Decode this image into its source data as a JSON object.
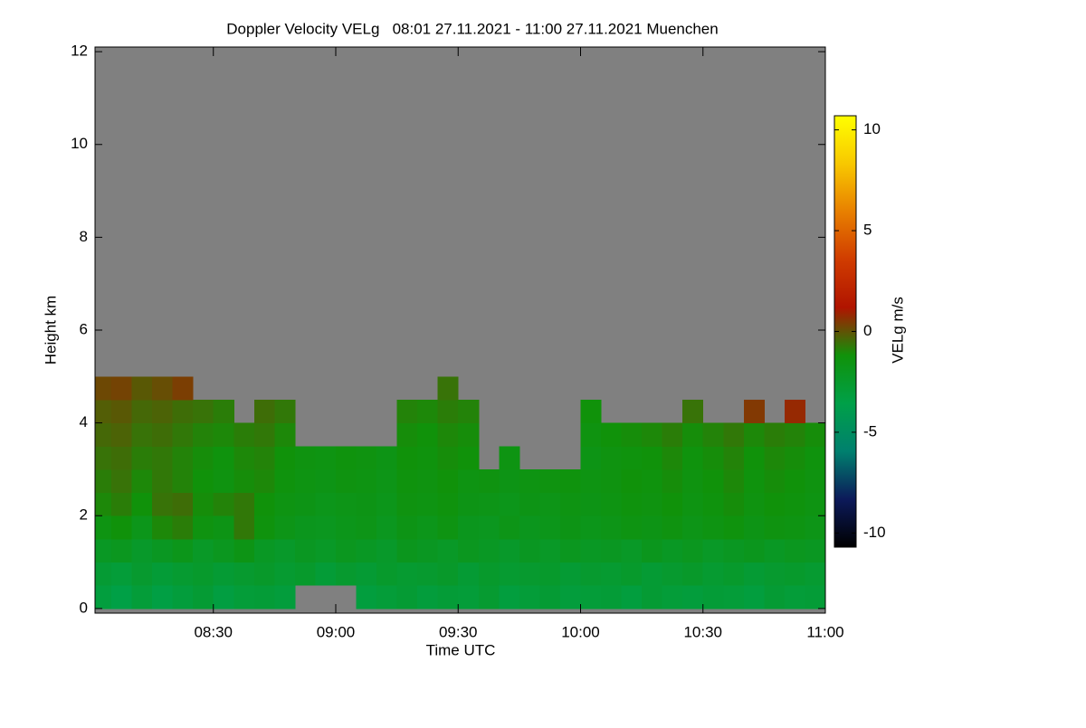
{
  "chart_data": {
    "type": "heatmap",
    "title": "Doppler Velocity VELg   08:01 27.11.2021 - 11:00 27.11.2021 Muenchen",
    "xlabel": "Time UTC",
    "ylabel": "Height km",
    "colorbar_label": "VELg m/s",
    "background": "#808080",
    "colorscale": [
      "#000000",
      "#0c1a5a",
      "#00806e",
      "#00a048",
      "#10920a",
      "#b01400",
      "#d03c00",
      "#e88000",
      "#f8c800",
      "#ffff00"
    ],
    "xlim": [
      481,
      660
    ],
    "ylim": [
      -0.1,
      12.1
    ],
    "zlim": [
      -10.7,
      10.7
    ],
    "xticks": [
      {
        "value": 510,
        "label": "08:30"
      },
      {
        "value": 540,
        "label": "09:00"
      },
      {
        "value": 570,
        "label": "09:30"
      },
      {
        "value": 600,
        "label": "10:00"
      },
      {
        "value": 630,
        "label": "10:30"
      },
      {
        "value": 660,
        "label": "11:00"
      }
    ],
    "yticks": [
      0,
      2,
      4,
      6,
      8,
      10,
      12
    ],
    "zticks": [
      -10,
      -5,
      0,
      5,
      10
    ],
    "x_edges": [
      481,
      485,
      490,
      495,
      500,
      505,
      510,
      515,
      520,
      525,
      530,
      535,
      540,
      545,
      550,
      555,
      560,
      565,
      570,
      575,
      580,
      585,
      590,
      595,
      600,
      605,
      610,
      615,
      620,
      625,
      630,
      635,
      640,
      645,
      650,
      655,
      660
    ],
    "y_edges": [
      0,
      0.5,
      1,
      1.5,
      2,
      2.5,
      3,
      3.5,
      4,
      4.5,
      5
    ],
    "z": [
      [
        -3.2,
        -3.5,
        -3,
        -3.4,
        -3.1,
        -2.8,
        -3.3,
        -3,
        -2.9,
        -3.1,
        null,
        null,
        null,
        -3.2,
        -3,
        -2.8,
        -3.1,
        -2.9,
        -3,
        -2.7,
        -3.2,
        -3,
        -2.8,
        -3.1,
        -3,
        -2.9,
        -3.2,
        -2.8,
        -3,
        -3.1,
        -2.9,
        -3,
        -3.2,
        -2.8,
        -3,
        -2.9
      ],
      [
        -2.8,
        -3,
        -2.6,
        -2.9,
        -2.7,
        -2.5,
        -2.8,
        -2.6,
        -2.4,
        -2.7,
        -2.5,
        -2.9,
        -2.6,
        -2.8,
        -2.5,
        -2.7,
        -2.6,
        -2.4,
        -2.8,
        -2.5,
        -2.7,
        -2.6,
        -2.5,
        -2.8,
        -2.6,
        -2.7,
        -2.5,
        -2.8,
        -2.6,
        -2.4,
        -2.7,
        -2.5,
        -2.8,
        -2.6,
        -2.5,
        -2.7
      ],
      [
        -2.2,
        -2,
        -2.4,
        -2.1,
        -1.8,
        -2.3,
        -2,
        -1.6,
        -2.2,
        -2.4,
        -2.1,
        -2.3,
        -2,
        -2.2,
        -2.4,
        -1.9,
        -2.1,
        -2.3,
        -2,
        -2.2,
        -2.4,
        -2.1,
        -2.3,
        -2,
        -2.2,
        -2.1,
        -2.3,
        -1.9,
        -2.2,
        -2,
        -2.3,
        -2.1,
        -1.9,
        -2.2,
        -2,
        -2.1
      ],
      [
        -1.5,
        -1.2,
        -1.8,
        -1,
        -0.8,
        -1.4,
        -1.6,
        -0.7,
        -1.3,
        -1.7,
        -1.9,
        -2,
        -1.8,
        -1.7,
        -2,
        -1.6,
        -1.8,
        -1.5,
        -1.9,
        -2,
        -1.7,
        -1.9,
        -1.8,
        -1.6,
        -1.8,
        -1.7,
        -1.5,
        -1.6,
        -1.4,
        -1.7,
        -1.5,
        -1.3,
        -1.6,
        -1.4,
        -1.5,
        -1.7
      ],
      [
        -1,
        -0.8,
        -1.2,
        -0.6,
        -0.5,
        -1.1,
        -0.9,
        -0.7,
        -1.2,
        -1.5,
        -1.6,
        -1.8,
        -1.7,
        -1.6,
        -1.8,
        -1.4,
        -1.5,
        -1.3,
        -1.6,
        -1.7,
        -1.8,
        -1.6,
        -1.7,
        -1.5,
        -1.6,
        -1.5,
        -1.3,
        -1.4,
        -1.2,
        -1.5,
        -1.3,
        -1.1,
        -1.4,
        -1.2,
        -1.3,
        -1.5
      ],
      [
        -0.8,
        -0.6,
        -1,
        -0.7,
        -0.9,
        -1.2,
        -1.4,
        -1.1,
        -1,
        -1.3,
        -1.5,
        -1.6,
        -1.4,
        -1.5,
        -1.7,
        -1.3,
        -1.4,
        -1.2,
        -1.5,
        -1.4,
        -1.6,
        -1.5,
        -1.4,
        -1.3,
        -1.5,
        -1.4,
        -1.2,
        -1.3,
        -1.1,
        -1.4,
        -1.2,
        -1,
        -1.3,
        -1.1,
        -1.2,
        -1.4
      ],
      [
        -0.6,
        -0.5,
        -0.8,
        -0.7,
        -0.9,
        -1.1,
        -1.3,
        -1,
        -0.9,
        -1.2,
        -1.4,
        -1.5,
        -1.3,
        -1.4,
        -1.6,
        -1.2,
        -1.3,
        -1.1,
        -1.2,
        null,
        -1.5,
        null,
        null,
        null,
        -1.6,
        -1.4,
        -1.3,
        -1.2,
        -1,
        -1.3,
        -1.1,
        -0.9,
        -1.2,
        -1,
        -1.1,
        -1.3
      ],
      [
        -0.4,
        -0.3,
        -0.6,
        -0.5,
        -0.7,
        -0.9,
        -1,
        -0.8,
        -0.7,
        -1,
        null,
        null,
        null,
        null,
        null,
        -1.1,
        -1.2,
        -1,
        -1.1,
        null,
        null,
        null,
        null,
        null,
        -1.4,
        -1.2,
        -1.1,
        -1,
        -0.8,
        -1.1,
        -0.9,
        -0.7,
        -1,
        -0.8,
        -0.9,
        -1.1
      ],
      [
        -0.2,
        -0.1,
        -0.4,
        -0.3,
        -0.5,
        -0.6,
        -0.8,
        null,
        -0.5,
        -0.7,
        null,
        null,
        null,
        null,
        null,
        -0.9,
        -1,
        -0.8,
        -0.9,
        null,
        null,
        null,
        null,
        null,
        -1.2,
        null,
        null,
        null,
        null,
        -0.6,
        null,
        null,
        0.5,
        null,
        0.8,
        null
      ],
      [
        0.2,
        0.3,
        -0.1,
        0.1,
        0.4,
        null,
        null,
        null,
        null,
        null,
        null,
        null,
        null,
        null,
        null,
        null,
        null,
        -0.6,
        null,
        null,
        null,
        null,
        null,
        null,
        null,
        null,
        null,
        null,
        null,
        null,
        null,
        null,
        null,
        null,
        null,
        null
      ]
    ]
  }
}
